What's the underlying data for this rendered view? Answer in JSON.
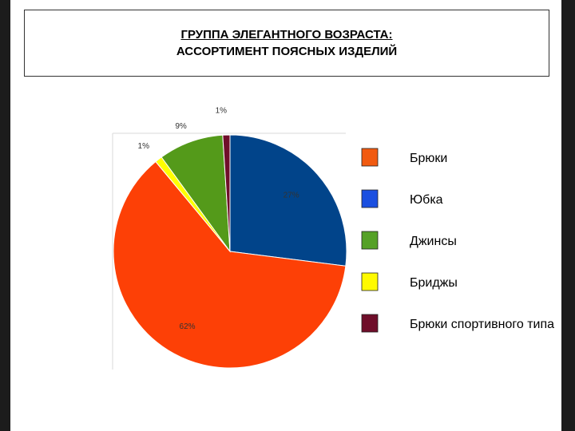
{
  "slide": {
    "title": "ГРУППА ЭЛЕГАНТНОГО  ВОЗРАСТА:",
    "subtitle": "АССОРТИМЕНТ ПОЯСНЫХ ИЗДЕЛИЙ"
  },
  "chart_data": {
    "type": "pie",
    "title": "",
    "slices": [
      {
        "label": "Юбка",
        "value": 27,
        "value_label": "27%",
        "color": "#01448a"
      },
      {
        "label": "Брюки",
        "value": 62,
        "value_label": "62%",
        "color": "#fd4006"
      },
      {
        "label": "Бриджы",
        "value": 1,
        "value_label": "1%",
        "color": "#ffff00"
      },
      {
        "label": "Джинсы",
        "value": 9,
        "value_label": "9%",
        "color": "#549a1a"
      },
      {
        "label": "Брюки спортивного типа",
        "value": 1,
        "value_label": "1%",
        "color": "#6f0e2a"
      }
    ],
    "legend": {
      "position": "right",
      "items": [
        {
          "label": "Брюки",
          "color": "#f15a10"
        },
        {
          "label": "Юбка",
          "color": "#1b4fe0"
        },
        {
          "label": "Джинсы",
          "color": "#55a127"
        },
        {
          "label": "Бриджы",
          "color": "#fffa00"
        },
        {
          "label": "Брюки спортивного типа",
          "color": "#6f0e2a"
        }
      ]
    }
  }
}
